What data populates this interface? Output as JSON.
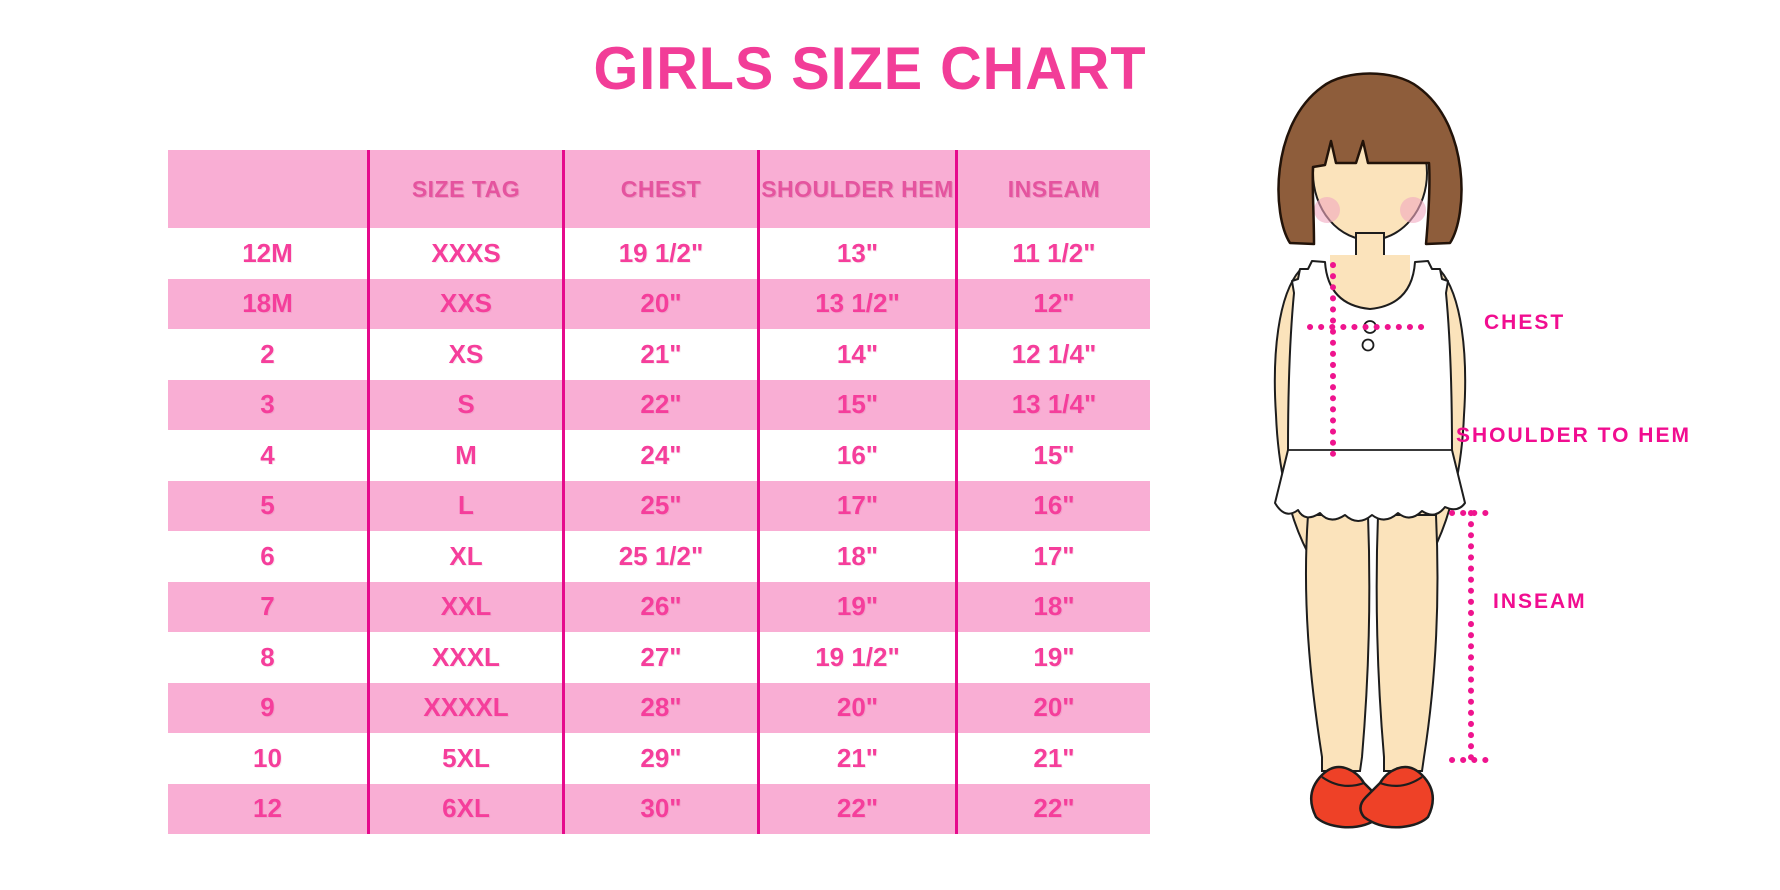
{
  "chart_data": {
    "type": "table",
    "title": "GIRLS SIZE CHART",
    "columns": [
      "",
      "SIZE TAG",
      "CHEST",
      "SHOULDER HEM",
      "INSEAM"
    ],
    "rows": [
      [
        "12M",
        "XXXS",
        "19 1/2\"",
        "13\"",
        "11 1/2\""
      ],
      [
        "18M",
        "XXS",
        "20\"",
        "13 1/2\"",
        "12\""
      ],
      [
        "2",
        "XS",
        "21\"",
        "14\"",
        "12 1/4\""
      ],
      [
        "3",
        "S",
        "22\"",
        "15\"",
        "13 1/4\""
      ],
      [
        "4",
        "M",
        "24\"",
        "16\"",
        "15\""
      ],
      [
        "5",
        "L",
        "25\"",
        "17\"",
        "16\""
      ],
      [
        "6",
        "XL",
        "25 1/2\"",
        "18\"",
        "17\""
      ],
      [
        "7",
        "XXL",
        "26\"",
        "19\"",
        "18\""
      ],
      [
        "8",
        "XXXL",
        "27\"",
        "19 1/2\"",
        "19\""
      ],
      [
        "9",
        "XXXXL",
        "28\"",
        "20\"",
        "20\""
      ],
      [
        "10",
        "5XL",
        "29\"",
        "21\"",
        "21\""
      ],
      [
        "12",
        "6XL",
        "30\"",
        "22\"",
        "22\""
      ]
    ],
    "layout": {
      "row_shading": "alternating white and pink, header pink",
      "gridlines": "vertical magenta separators only"
    }
  },
  "figure": {
    "chest_label": "CHEST",
    "shoulder_to_hem_label": "SHOULDER TO HEM",
    "inseam_label": "INSEAM"
  },
  "colors": {
    "title_pink": "#f23d98",
    "row_pink": "#f9aed4",
    "separator_magenta": "#e60a8c",
    "cell_text_pink": "#f53e9b",
    "header_text_pink": "#e5549f",
    "label_magenta": "#f10d90",
    "dotted_line_magenta": "#ef148e",
    "hair_brown": "#8e5d3b",
    "skin": "#fbe3bb",
    "blush_pink": "#f2a9c0",
    "shoe_red": "#ee4127"
  }
}
